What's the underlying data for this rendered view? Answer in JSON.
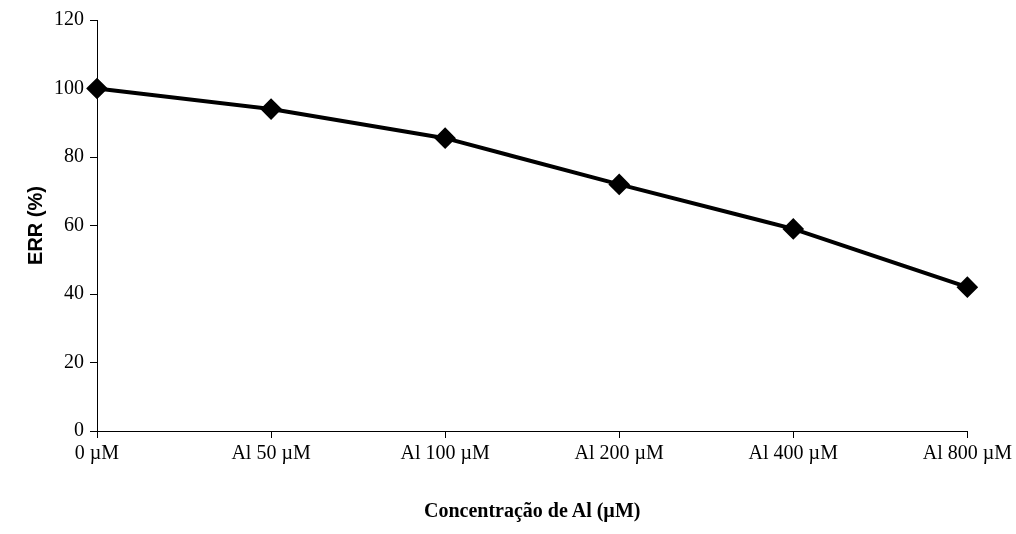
{
  "chart_data": {
    "type": "line",
    "xlabel": "Concentração de Al (µM)",
    "ylabel": "ERR (%)",
    "categories": [
      "0 µM",
      "Al 50 µM",
      "Al 100 µM",
      "Al 200 µM",
      "Al 400 µM",
      "Al 800 µM"
    ],
    "series": [
      {
        "color": "#000000",
        "values": [
          100,
          94,
          85.5,
          72,
          59,
          42
        ]
      }
    ],
    "ylim": [
      0,
      120
    ],
    "yticks": [
      0,
      20,
      40,
      60,
      80,
      100,
      120
    ],
    "grid": false,
    "legend": false,
    "marker": "diamond",
    "line_style": "solid"
  }
}
